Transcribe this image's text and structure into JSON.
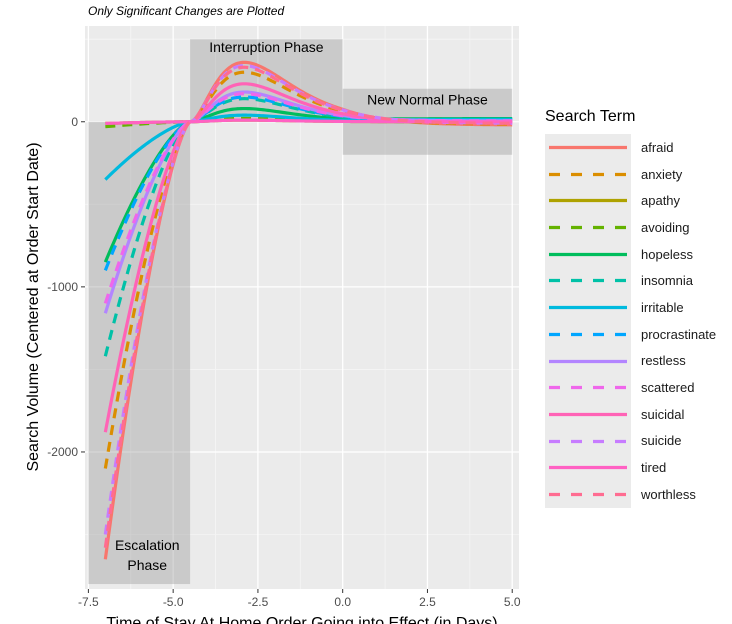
{
  "subtitle": "Only Significant Changes are Plotted",
  "chart_data": {
    "type": "line",
    "xlabel": "Time of Stay At Home Order Going into Effect (in Days)",
    "ylabel": "Search Volume (Centered at Order Start Date)",
    "xlim": [
      -7.6,
      5.2
    ],
    "ylim": [
      -2830,
      580
    ],
    "x_ticks": [
      "-7.5",
      "-5.0",
      "-2.5",
      "0.0",
      "2.5",
      "5.0"
    ],
    "y_ticks": [
      "-2000",
      "-1000",
      "0"
    ],
    "x_tick_values": [
      -7.5,
      -5.0,
      -2.5,
      0.0,
      2.5,
      5.0
    ],
    "y_tick_values": [
      -2000,
      -1000,
      0
    ],
    "grid": true,
    "legend_title": "Search Term",
    "legend_position": "right",
    "phases": [
      {
        "label_lines": [
          "Escalation",
          "Phase"
        ],
        "x": [
          -7.5,
          -4.5
        ],
        "y": [
          -2800,
          0
        ]
      },
      {
        "label_lines": [
          "Interruption Phase"
        ],
        "x": [
          -4.5,
          0.0
        ],
        "y": [
          0,
          500
        ]
      },
      {
        "label_lines": [
          "New Normal Phase"
        ],
        "x": [
          0.0,
          5.0
        ],
        "y": [
          -200,
          200
        ]
      }
    ],
    "series": [
      {
        "name": "afraid",
        "color": "#F8766D",
        "dash": false,
        "start": -2650,
        "peak": 360,
        "late": -20
      },
      {
        "name": "anxiety",
        "color": "#DB8E00",
        "dash": true,
        "start": -2100,
        "peak": 300,
        "late": -15
      },
      {
        "name": "apathy",
        "color": "#AEA200",
        "dash": false,
        "start": -10,
        "peak": 10,
        "late": 0
      },
      {
        "name": "avoiding",
        "color": "#64B200",
        "dash": true,
        "start": -30,
        "peak": 20,
        "late": 0
      },
      {
        "name": "hopeless",
        "color": "#00BD5C",
        "dash": false,
        "start": -850,
        "peak": 80,
        "late": 20
      },
      {
        "name": "insomnia",
        "color": "#00C1A7",
        "dash": true,
        "start": -1420,
        "peak": 140,
        "late": 10
      },
      {
        "name": "irritable",
        "color": "#00BADE",
        "dash": false,
        "start": -350,
        "peak": 40,
        "late": 15
      },
      {
        "name": "procrastinate",
        "color": "#00A6FF",
        "dash": true,
        "start": -900,
        "peak": 150,
        "late": 5
      },
      {
        "name": "restless",
        "color": "#B385FF",
        "dash": false,
        "start": -1160,
        "peak": 180,
        "late": 5
      },
      {
        "name": "scattered",
        "color": "#EF67EB",
        "dash": true,
        "start": -1100,
        "peak": 170,
        "late": 5
      },
      {
        "name": "suicidal",
        "color": "#FF63B6",
        "dash": false,
        "start": -1880,
        "peak": 230,
        "late": -5
      },
      {
        "name": "suicide",
        "color": "#C77CFF",
        "dash": true,
        "start": -2500,
        "peak": 340,
        "late": -10
      },
      {
        "name": "tired",
        "color": "#FF61C3",
        "dash": false,
        "start": -10,
        "peak": 10,
        "late": 0
      },
      {
        "name": "worthless",
        "color": "#FF6C91",
        "dash": true,
        "start": -2580,
        "peak": 330,
        "late": -10
      }
    ]
  }
}
